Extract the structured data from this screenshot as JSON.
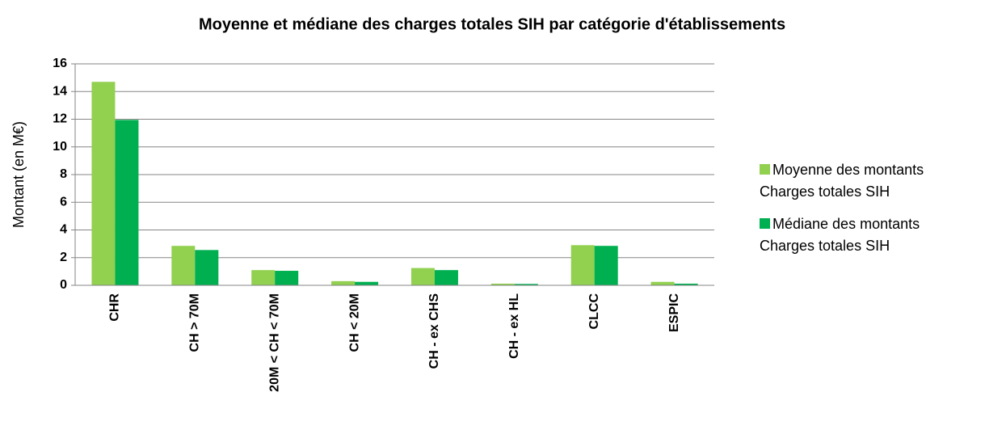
{
  "chart_data": {
    "type": "bar",
    "title": "Moyenne et médiane des charges totales SIH par catégorie d'établissements",
    "y_label": "Montant (en M€)",
    "categories": [
      "CHR",
      "CH > 70M",
      "20M < CH < 70M",
      "CH < 20M",
      "CH - ex CHS",
      "CH - ex HL",
      "CLCC",
      "ESPIC"
    ],
    "series": [
      {
        "name": "Moyenne des montants Charges totales SIH",
        "color": "#92d050",
        "values": [
          14.7,
          2.85,
          1.1,
          0.3,
          1.25,
          0.12,
          2.9,
          0.25
        ]
      },
      {
        "name": "Médiane des montants Charges totales SIH",
        "color": "#00b050",
        "values": [
          11.95,
          2.55,
          1.05,
          0.25,
          1.1,
          0.1,
          2.85,
          0.12
        ]
      }
    ],
    "ylim": [
      0,
      16
    ],
    "yticks": [
      0,
      2,
      4,
      6,
      8,
      10,
      12,
      14,
      16
    ],
    "grid": true,
    "legend": "right"
  }
}
